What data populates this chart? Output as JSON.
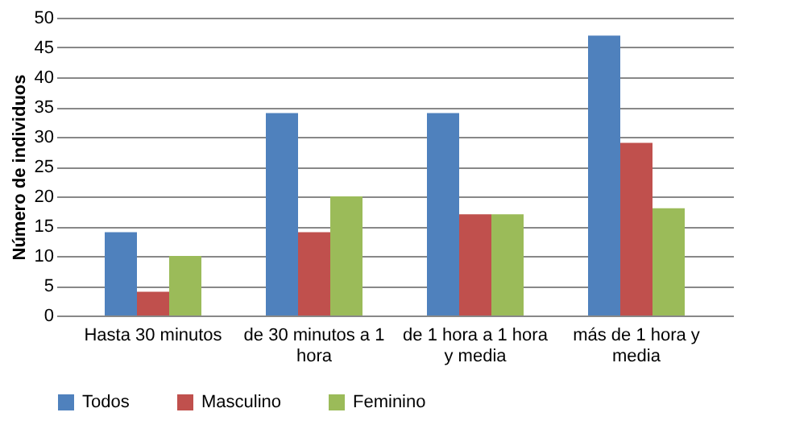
{
  "chart_data": {
    "type": "bar",
    "ylabel": "Número de individuos",
    "categories": [
      "Hasta 30 minutos",
      "de 30 minutos a 1 hora",
      "de 1 hora a 1 hora y media",
      "más de 1 hora y media"
    ],
    "series": [
      {
        "name": "Todos",
        "color": "#4f81bd",
        "values": [
          14,
          34,
          34,
          47
        ]
      },
      {
        "name": "Masculino",
        "color": "#c0504d",
        "values": [
          4,
          14,
          17,
          29
        ]
      },
      {
        "name": "Feminino",
        "color": "#9bbb59",
        "values": [
          10,
          20,
          17,
          18
        ]
      }
    ],
    "ylim": [
      0,
      50
    ],
    "yticks": [
      0,
      5,
      10,
      15,
      20,
      25,
      30,
      35,
      40,
      45,
      50
    ],
    "grid": "y",
    "legend": "bottom"
  }
}
